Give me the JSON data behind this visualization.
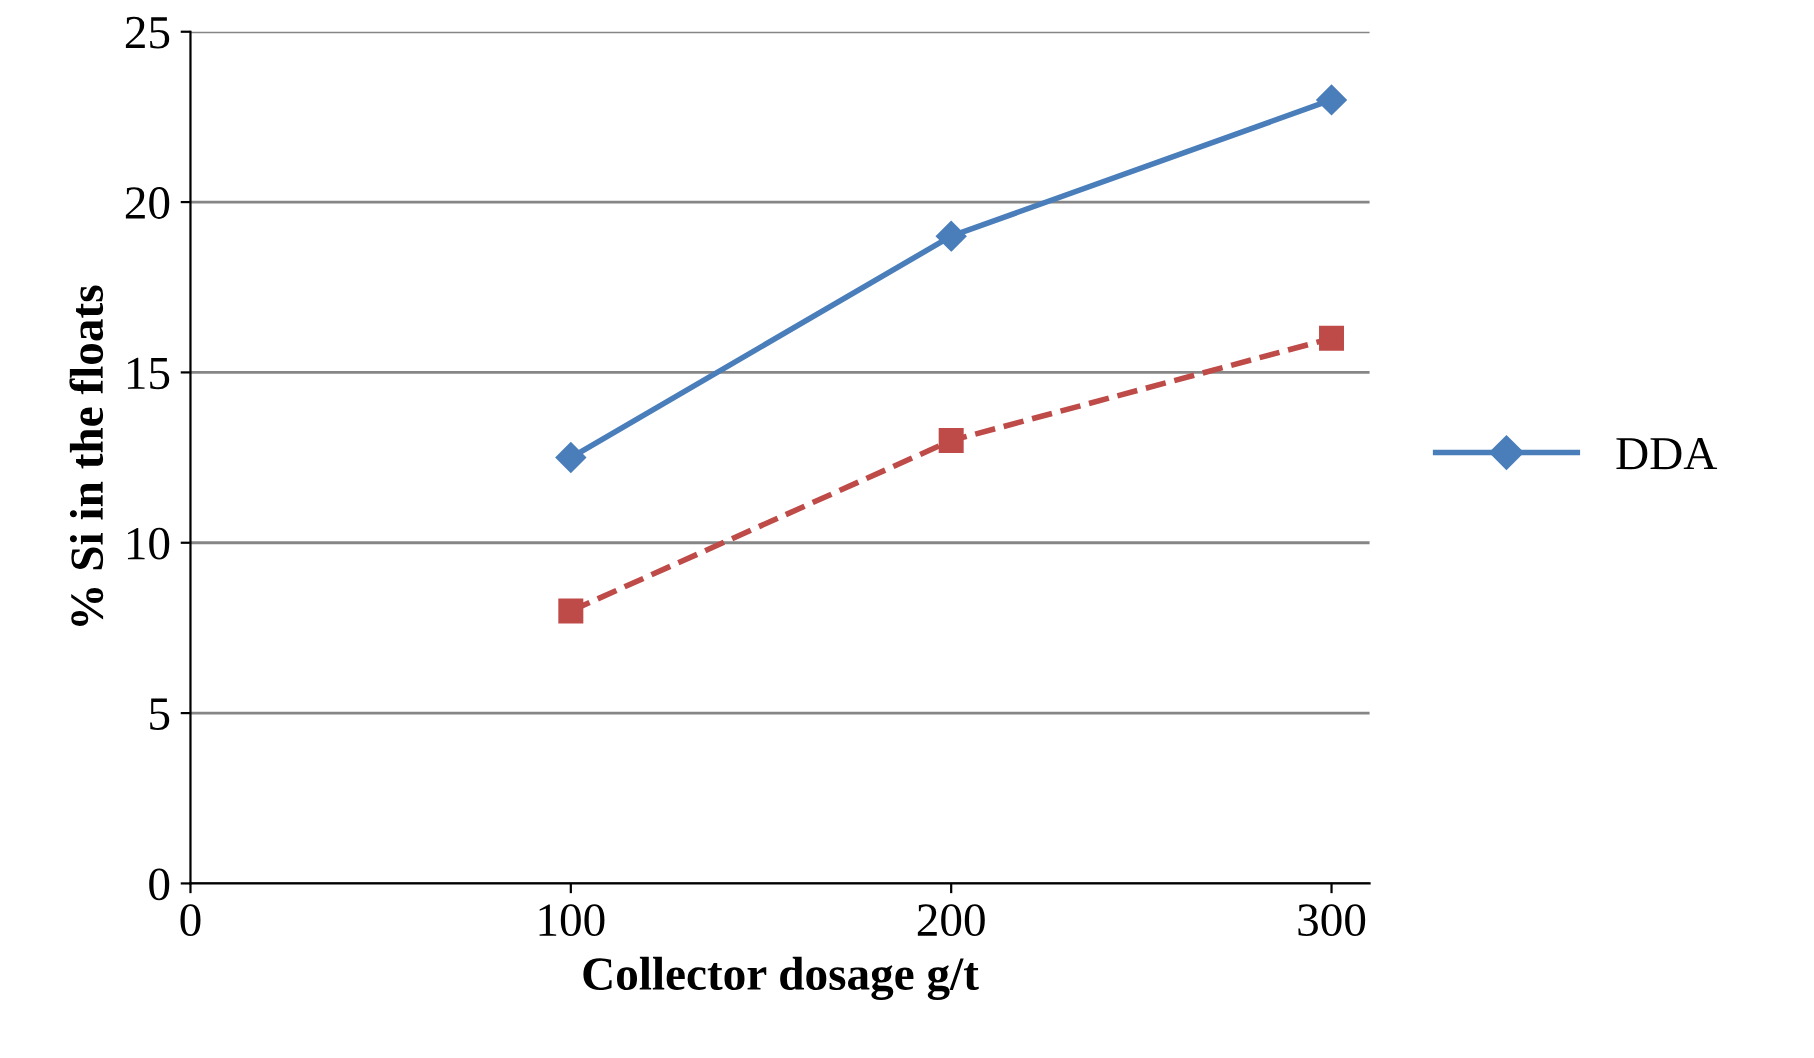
{
  "chart_data": {
    "type": "line",
    "xlabel": "Collector dosage g/t",
    "ylabel": "% Si in the floats",
    "x": [
      100,
      200,
      300
    ],
    "series": [
      {
        "name": "DDA",
        "color": "#4a7ebb",
        "values": [
          12.5,
          19,
          23
        ],
        "marker": "diamond",
        "line_style": "solid"
      },
      {
        "color": "#be4b48",
        "values": [
          8,
          13,
          16
        ],
        "marker": "square",
        "line_style": "dashed"
      }
    ],
    "xlim": [
      0,
      310
    ],
    "xticks": [
      0,
      100,
      200,
      300
    ],
    "ylim": [
      0,
      25
    ],
    "yticks": [
      0,
      5,
      10,
      15,
      20,
      25
    ],
    "grid": "y",
    "legend": "right"
  }
}
